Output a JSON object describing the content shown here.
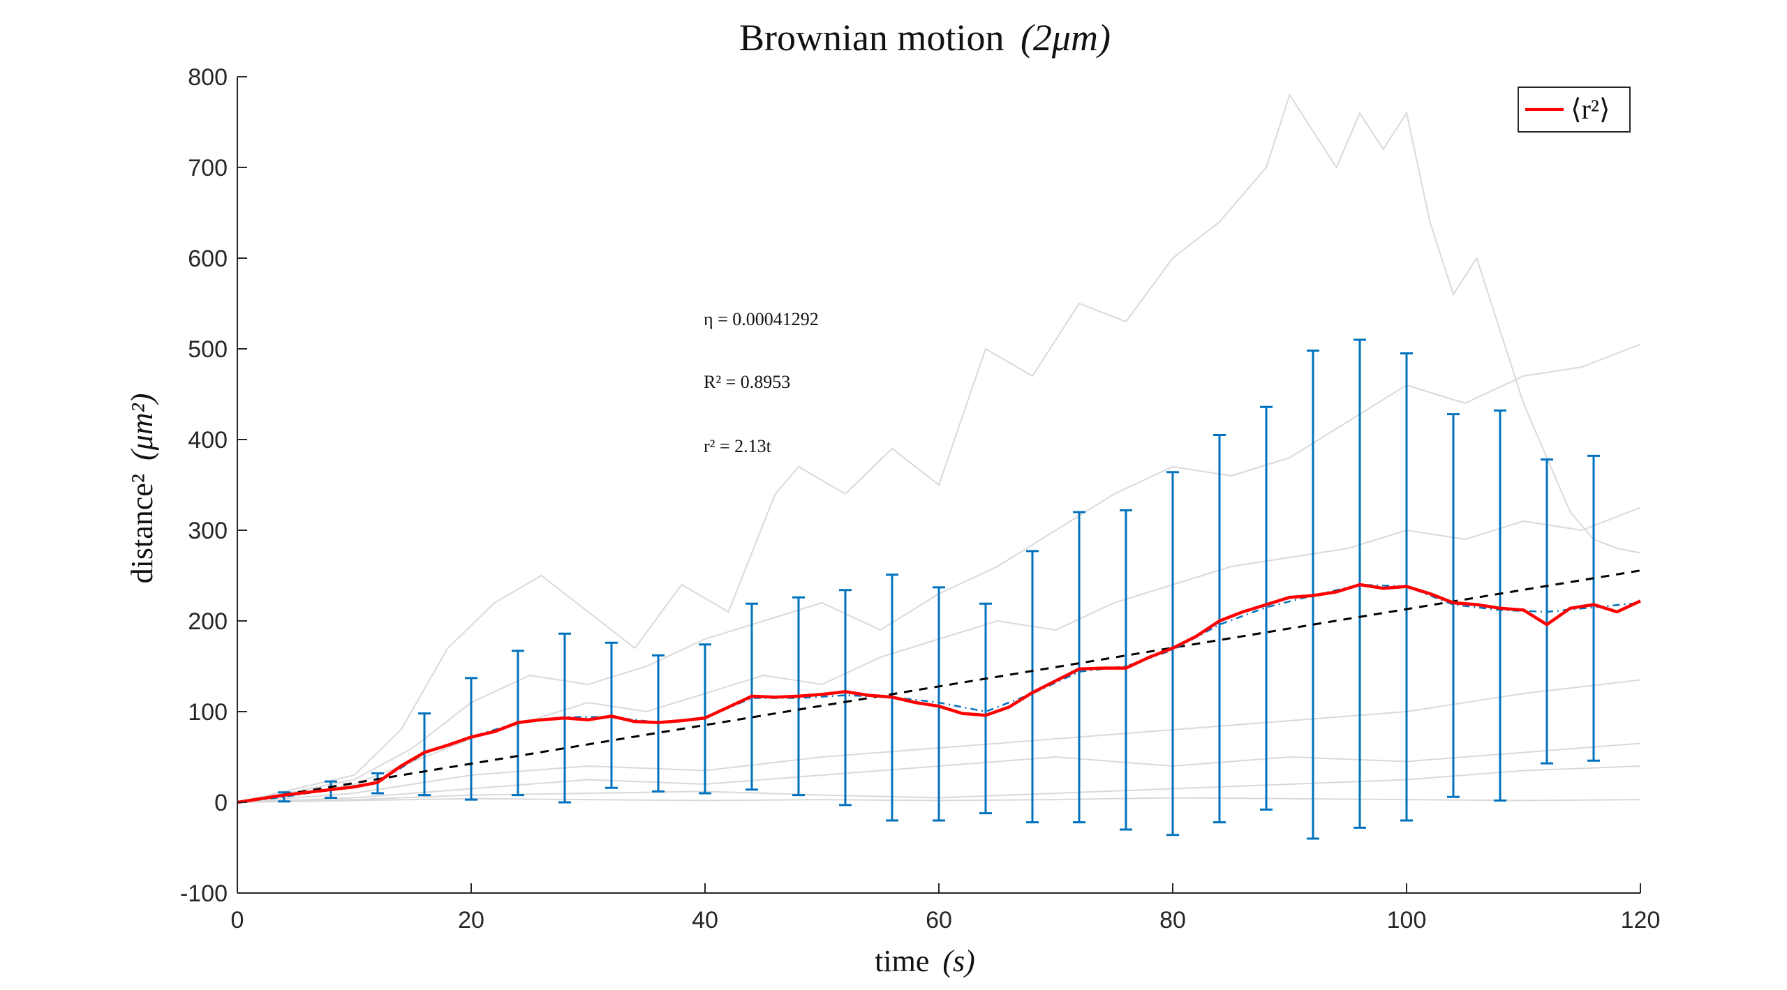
{
  "chart_data": {
    "type": "line",
    "title": "Brownian motion",
    "title_math": "(2μm)",
    "xlabel": "time",
    "xlabel_unit": "(s)",
    "ylabel": "distance²",
    "ylabel_unit": "(μm²)",
    "xlim": [
      0,
      120
    ],
    "ylim": [
      -100,
      800
    ],
    "x_ticks": [
      "0",
      "20",
      "40",
      "60",
      "80",
      "100",
      "120"
    ],
    "y_ticks": [
      "-100",
      "0",
      "100",
      "200",
      "300",
      "400",
      "500",
      "600",
      "700",
      "800"
    ],
    "grid": false,
    "legend": {
      "position": "top-right",
      "entries": [
        "⟨r²⟩"
      ]
    },
    "annotations": [
      "η = 0.00041292",
      "R² = 0.8953",
      "r² = 2.13t"
    ],
    "fit": {
      "slope": 2.13,
      "style": "dashed",
      "color": "#000000"
    },
    "colors": {
      "mean": "#ff0000",
      "errorbars": "#0072bd",
      "fit": "#000000",
      "trajectories": "#d9d9d9"
    },
    "series": [
      {
        "name": "⟨r²⟩",
        "x": [
          0,
          2,
          4,
          6,
          8,
          10,
          12,
          14,
          16,
          18,
          20,
          22,
          24,
          26,
          28,
          30,
          32,
          34,
          36,
          38,
          40,
          42,
          44,
          46,
          48,
          50,
          52,
          54,
          56,
          58,
          60,
          62,
          64,
          66,
          68,
          70,
          72,
          74,
          76,
          78,
          80,
          82,
          84,
          86,
          88,
          90,
          92,
          94,
          96,
          98,
          100,
          102,
          104,
          106,
          108,
          110,
          112,
          114,
          116,
          118,
          120
        ],
        "values": [
          0,
          4,
          8,
          11,
          14,
          17,
          22,
          40,
          55,
          63,
          72,
          78,
          88,
          91,
          93,
          91,
          95,
          89,
          88,
          90,
          93,
          105,
          117,
          116,
          117,
          119,
          122,
          118,
          116,
          110,
          106,
          98,
          96,
          105,
          121,
          134,
          147,
          148,
          148,
          160,
          170,
          183,
          200,
          210,
          218,
          226,
          228,
          232,
          240,
          236,
          238,
          230,
          220,
          218,
          214,
          212,
          196,
          214,
          218,
          210,
          222
        ]
      },
      {
        "name": "",
        "style": "dash-dot",
        "x": [
          0,
          4,
          8,
          12,
          16,
          20,
          24,
          28,
          32,
          36,
          40,
          44,
          48,
          52,
          56,
          60,
          64,
          68,
          72,
          76,
          80,
          84,
          88,
          92,
          96,
          100,
          104,
          108,
          112,
          116,
          120
        ],
        "values": [
          0,
          6,
          14,
          22,
          54,
          72,
          88,
          94,
          94,
          88,
          93,
          115,
          115,
          118,
          116,
          110,
          100,
          120,
          144,
          150,
          168,
          196,
          215,
          228,
          240,
          238,
          218,
          212,
          210,
          215,
          220
        ]
      }
    ],
    "errorbars": {
      "x": [
        4,
        8,
        12,
        16,
        20,
        24,
        28,
        32,
        36,
        40,
        44,
        48,
        52,
        56,
        60,
        64,
        68,
        72,
        76,
        80,
        84,
        88,
        92,
        96,
        100,
        104,
        108,
        112,
        116
      ],
      "low": [
        1,
        5,
        10,
        8,
        3,
        8,
        0,
        16,
        12,
        10,
        14,
        8,
        -3,
        -20,
        -20,
        -12,
        -22,
        -22,
        -30,
        -36,
        -22,
        -8,
        -40,
        -28,
        -20,
        6,
        2,
        43,
        46
      ],
      "high": [
        11,
        23,
        32,
        98,
        137,
        167,
        186,
        176,
        162,
        174,
        219,
        226,
        234,
        251,
        237,
        219,
        277,
        320,
        322,
        364,
        405,
        436,
        498,
        510,
        495,
        428,
        432,
        378,
        382
      ]
    },
    "trajectories": [
      {
        "x": [
          0,
          5,
          10,
          14,
          18,
          22,
          26,
          30,
          34,
          38,
          42,
          46,
          48,
          52,
          56,
          60,
          64,
          68,
          72,
          76,
          80,
          84,
          88,
          90,
          92,
          94,
          96,
          98,
          100,
          102,
          104,
          106,
          108,
          110,
          112,
          114,
          116,
          118,
          120
        ],
        "values": [
          0,
          15,
          30,
          80,
          170,
          220,
          250,
          210,
          170,
          240,
          210,
          340,
          370,
          340,
          390,
          350,
          500,
          470,
          550,
          530,
          600,
          640,
          700,
          780,
          740,
          700,
          760,
          720,
          760,
          640,
          560,
          600,
          520,
          440,
          380,
          320,
          290,
          280,
          275
        ]
      },
      {
        "x": [
          0,
          5,
          10,
          15,
          20,
          25,
          30,
          35,
          40,
          45,
          50,
          55,
          60,
          65,
          70,
          75,
          80,
          85,
          90,
          95,
          100,
          105,
          110,
          115,
          120
        ],
        "values": [
          0,
          12,
          25,
          60,
          110,
          140,
          130,
          150,
          180,
          200,
          220,
          190,
          230,
          260,
          300,
          340,
          370,
          360,
          380,
          420,
          460,
          440,
          470,
          480,
          505
        ]
      },
      {
        "x": [
          0,
          5,
          10,
          15,
          20,
          25,
          30,
          35,
          40,
          45,
          50,
          55,
          60,
          65,
          70,
          75,
          80,
          85,
          90,
          95,
          100,
          105,
          110,
          115,
          120
        ],
        "values": [
          0,
          8,
          20,
          45,
          70,
          90,
          110,
          100,
          120,
          140,
          130,
          160,
          180,
          200,
          190,
          220,
          240,
          260,
          270,
          280,
          300,
          290,
          310,
          300,
          325
        ]
      },
      {
        "x": [
          0,
          10,
          20,
          30,
          40,
          50,
          60,
          70,
          80,
          90,
          100,
          110,
          120
        ],
        "values": [
          0,
          10,
          30,
          40,
          35,
          50,
          60,
          70,
          80,
          90,
          100,
          120,
          135
        ]
      },
      {
        "x": [
          0,
          10,
          20,
          30,
          40,
          50,
          60,
          70,
          80,
          90,
          100,
          110,
          120
        ],
        "values": [
          0,
          5,
          15,
          25,
          20,
          30,
          40,
          50,
          40,
          50,
          45,
          55,
          65
        ]
      },
      {
        "x": [
          0,
          10,
          20,
          30,
          40,
          50,
          60,
          70,
          80,
          90,
          100,
          110,
          120
        ],
        "values": [
          0,
          3,
          8,
          10,
          12,
          8,
          5,
          10,
          15,
          20,
          25,
          35,
          40
        ]
      },
      {
        "x": [
          0,
          10,
          20,
          30,
          40,
          50,
          60,
          70,
          80,
          90,
          100,
          110,
          120
        ],
        "values": [
          0,
          2,
          4,
          3,
          2,
          3,
          2,
          3,
          5,
          4,
          3,
          2,
          3
        ]
      }
    ]
  }
}
